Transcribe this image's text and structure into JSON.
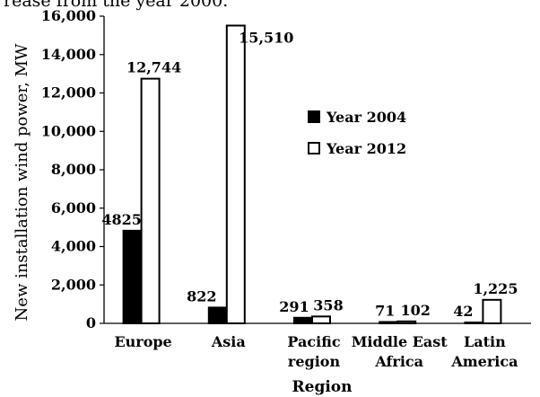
{
  "caption_fragment": "rease from the year 2000.",
  "chart_data": {
    "type": "bar",
    "title": "",
    "xlabel": "Region",
    "ylabel": "New installation wind power, MW",
    "ylim": [
      0,
      16000
    ],
    "yticks": [
      0,
      2000,
      4000,
      6000,
      8000,
      10000,
      12000,
      14000,
      16000
    ],
    "ytick_labels": [
      "0",
      "2,000",
      "4,000",
      "6,000",
      "8,000",
      "10,000",
      "12,000",
      "14,000",
      "16,000"
    ],
    "categories": [
      [
        "Europe"
      ],
      [
        "Asia"
      ],
      [
        "Pacific",
        "region"
      ],
      [
        "Middle East",
        "Africa"
      ],
      [
        "Latin",
        "America"
      ]
    ],
    "series": [
      {
        "name": "Year 2004",
        "color": "#000000",
        "values": [
          4825,
          822,
          291,
          71,
          42
        ],
        "labels": [
          "4825",
          "822",
          "291",
          "71",
          "42"
        ]
      },
      {
        "name": "Year 2012",
        "color": "#ffffff",
        "values": [
          12744,
          15510,
          358,
          102,
          1225
        ],
        "labels": [
          "12,744",
          "15,510",
          "358",
          "102",
          "1,225"
        ]
      }
    ],
    "legend_position": "center-right",
    "grid": false
  }
}
